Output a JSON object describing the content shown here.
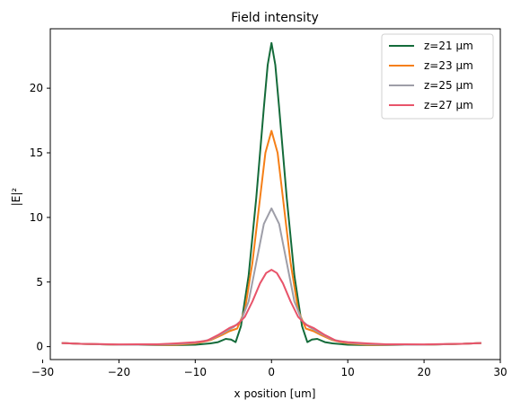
{
  "chart_data": {
    "type": "line",
    "title": "Field intensity",
    "xlabel": "x position [um]",
    "ylabel": "|E|²",
    "xlim": [
      -29,
      30
    ],
    "ylim": [
      -1,
      24.6
    ],
    "xticks": [
      -30,
      -20,
      -10,
      0,
      10,
      20,
      30
    ],
    "yticks": [
      0,
      5,
      10,
      15,
      20
    ],
    "legend_position": "top-right",
    "series": [
      {
        "name": "z=21 μm",
        "color": "#146b3a",
        "points": [
          [
            -27.5,
            0.28
          ],
          [
            -25,
            0.22
          ],
          [
            -22.5,
            0.18
          ],
          [
            -20,
            0.15
          ],
          [
            -17.5,
            0.15
          ],
          [
            -15,
            0.12
          ],
          [
            -12.5,
            0.12
          ],
          [
            -10,
            0.15
          ],
          [
            -8,
            0.25
          ],
          [
            -7,
            0.35
          ],
          [
            -6,
            0.6
          ],
          [
            -5.3,
            0.55
          ],
          [
            -4.7,
            0.35
          ],
          [
            -4,
            1.6
          ],
          [
            -3,
            5.5
          ],
          [
            -2,
            11.5
          ],
          [
            -1,
            18.5
          ],
          [
            -0.5,
            21.8
          ],
          [
            0,
            23.5
          ],
          [
            0.5,
            21.8
          ],
          [
            1,
            18.5
          ],
          [
            2,
            11.5
          ],
          [
            3,
            5.5
          ],
          [
            4,
            1.6
          ],
          [
            4.7,
            0.35
          ],
          [
            5.3,
            0.55
          ],
          [
            6,
            0.6
          ],
          [
            7,
            0.35
          ],
          [
            8,
            0.25
          ],
          [
            10,
            0.15
          ],
          [
            12.5,
            0.12
          ],
          [
            15,
            0.12
          ],
          [
            17.5,
            0.15
          ],
          [
            20,
            0.15
          ],
          [
            22.5,
            0.18
          ],
          [
            25,
            0.22
          ],
          [
            27.5,
            0.28
          ]
        ]
      },
      {
        "name": "z=23 μm",
        "color": "#f57f17",
        "points": [
          [
            -27.5,
            0.28
          ],
          [
            -25,
            0.22
          ],
          [
            -22.5,
            0.18
          ],
          [
            -20,
            0.15
          ],
          [
            -17.5,
            0.15
          ],
          [
            -15,
            0.13
          ],
          [
            -12.5,
            0.15
          ],
          [
            -10,
            0.25
          ],
          [
            -8,
            0.5
          ],
          [
            -6.5,
            0.9
          ],
          [
            -5.5,
            1.2
          ],
          [
            -4.5,
            1.4
          ],
          [
            -3.5,
            2.8
          ],
          [
            -2.5,
            6.5
          ],
          [
            -1.5,
            11.5
          ],
          [
            -0.8,
            15
          ],
          [
            0,
            16.7
          ],
          [
            0.8,
            15
          ],
          [
            1.5,
            11.5
          ],
          [
            2.5,
            6.5
          ],
          [
            3.5,
            2.8
          ],
          [
            4.5,
            1.4
          ],
          [
            5.5,
            1.2
          ],
          [
            6.5,
            0.9
          ],
          [
            8,
            0.5
          ],
          [
            10,
            0.25
          ],
          [
            12.5,
            0.15
          ],
          [
            15,
            0.13
          ],
          [
            17.5,
            0.15
          ],
          [
            20,
            0.15
          ],
          [
            22.5,
            0.18
          ],
          [
            25,
            0.22
          ],
          [
            27.5,
            0.28
          ]
        ]
      },
      {
        "name": "z=25 μm",
        "color": "#9e9ea8",
        "points": [
          [
            -27.5,
            0.28
          ],
          [
            -25,
            0.22
          ],
          [
            -22.5,
            0.18
          ],
          [
            -20,
            0.15
          ],
          [
            -17.5,
            0.15
          ],
          [
            -15,
            0.15
          ],
          [
            -12.5,
            0.2
          ],
          [
            -10,
            0.3
          ],
          [
            -8,
            0.55
          ],
          [
            -6.5,
            1.0
          ],
          [
            -5,
            1.5
          ],
          [
            -4,
            2.0
          ],
          [
            -3,
            3.5
          ],
          [
            -2,
            6.5
          ],
          [
            -1,
            9.5
          ],
          [
            0,
            10.7
          ],
          [
            1,
            9.5
          ],
          [
            2,
            6.5
          ],
          [
            3,
            3.5
          ],
          [
            4,
            2.0
          ],
          [
            5,
            1.5
          ],
          [
            6.5,
            1.0
          ],
          [
            8,
            0.55
          ],
          [
            10,
            0.3
          ],
          [
            12.5,
            0.2
          ],
          [
            15,
            0.15
          ],
          [
            17.5,
            0.15
          ],
          [
            20,
            0.15
          ],
          [
            22.5,
            0.18
          ],
          [
            25,
            0.22
          ],
          [
            27.5,
            0.28
          ]
        ]
      },
      {
        "name": "z=27 μm",
        "color": "#e8546a",
        "points": [
          [
            -27.5,
            0.28
          ],
          [
            -25,
            0.22
          ],
          [
            -22.5,
            0.2
          ],
          [
            -20,
            0.17
          ],
          [
            -17.5,
            0.18
          ],
          [
            -15,
            0.18
          ],
          [
            -12.5,
            0.25
          ],
          [
            -10,
            0.35
          ],
          [
            -8.5,
            0.45
          ],
          [
            -7,
            0.9
          ],
          [
            -5.5,
            1.45
          ],
          [
            -4.5,
            1.7
          ],
          [
            -3.5,
            2.3
          ],
          [
            -2.5,
            3.5
          ],
          [
            -1.5,
            4.9
          ],
          [
            -0.7,
            5.7
          ],
          [
            0,
            5.95
          ],
          [
            0.7,
            5.7
          ],
          [
            1.5,
            4.9
          ],
          [
            2.5,
            3.5
          ],
          [
            3.5,
            2.3
          ],
          [
            4.5,
            1.7
          ],
          [
            5.5,
            1.45
          ],
          [
            7,
            0.9
          ],
          [
            8.5,
            0.45
          ],
          [
            10,
            0.35
          ],
          [
            12.5,
            0.25
          ],
          [
            15,
            0.18
          ],
          [
            17.5,
            0.18
          ],
          [
            20,
            0.17
          ],
          [
            22.5,
            0.2
          ],
          [
            25,
            0.22
          ],
          [
            27.5,
            0.28
          ]
        ]
      }
    ]
  }
}
